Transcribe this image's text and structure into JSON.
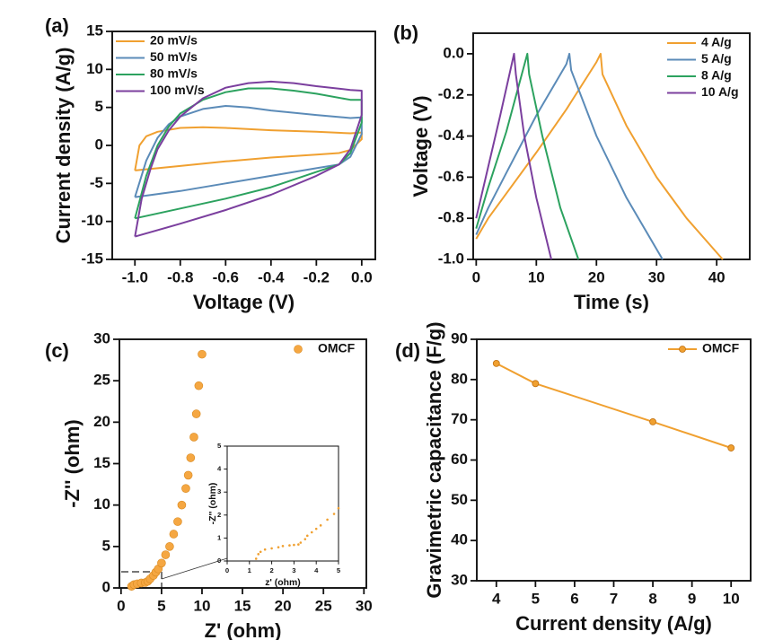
{
  "chart_data": [
    {
      "type": "line",
      "label": "(a)",
      "xlabel": "Voltage (V)",
      "ylabel": "Current density (A/g)",
      "xlim": [
        -1.1,
        0.06
      ],
      "ylim": [
        -15,
        15
      ],
      "xticks": [
        {
          "value": -1.0,
          "label": "-1.0"
        },
        -0.8,
        -0.6,
        -0.4,
        -0.2,
        {
          "value": 0,
          "label": "0.0"
        }
      ],
      "yticks": [
        -15,
        -10,
        -5,
        0,
        5,
        10,
        15
      ],
      "legend": "upper left",
      "series": [
        {
          "name": "20 mV/s",
          "color": "#f0a030",
          "x": [
            -1.0,
            -0.98,
            -0.95,
            -0.9,
            -0.8,
            -0.7,
            -0.6,
            -0.4,
            -0.2,
            -0.05,
            0,
            0,
            -0.05,
            -0.1,
            -0.2,
            -0.4,
            -0.6,
            -0.8,
            -1.0
          ],
          "values": [
            -3.3,
            0,
            1.2,
            1.8,
            2.3,
            2.4,
            2.3,
            2.0,
            1.8,
            1.6,
            1.7,
            0.8,
            -0.6,
            -1.0,
            -1.2,
            -1.6,
            -2.1,
            -2.7,
            -3.3
          ]
        },
        {
          "name": "50 mV/s",
          "color": "#5b8bb8",
          "x": [
            -1.0,
            -0.95,
            -0.9,
            -0.85,
            -0.8,
            -0.7,
            -0.6,
            -0.5,
            -0.4,
            -0.2,
            -0.05,
            0,
            0,
            -0.05,
            -0.1,
            -0.2,
            -0.4,
            -0.6,
            -0.8,
            -1.0
          ],
          "values": [
            -6.8,
            -2,
            1,
            2.8,
            3.8,
            4.8,
            5.2,
            5.0,
            4.6,
            4.0,
            3.6,
            3.7,
            1.5,
            -1.5,
            -2.5,
            -3.0,
            -4.0,
            -5.0,
            -6.0,
            -6.8
          ]
        },
        {
          "name": "80 mV/s",
          "color": "#2ca25f",
          "x": [
            -1.0,
            -0.95,
            -0.9,
            -0.85,
            -0.8,
            -0.7,
            -0.6,
            -0.5,
            -0.4,
            -0.3,
            -0.2,
            -0.05,
            0,
            0,
            -0.05,
            -0.1,
            -0.2,
            -0.4,
            -0.6,
            -0.8,
            -1.0
          ],
          "values": [
            -9.6,
            -4,
            0,
            2.5,
            4.2,
            6.0,
            7.0,
            7.5,
            7.5,
            7.2,
            6.8,
            6.0,
            6.0,
            3,
            -1,
            -2.5,
            -3.5,
            -5.5,
            -7.0,
            -8.3,
            -9.6
          ]
        },
        {
          "name": "100 mV/s",
          "color": "#7b3f9e",
          "x": [
            -1.0,
            -0.97,
            -0.93,
            -0.9,
            -0.85,
            -0.8,
            -0.7,
            -0.6,
            -0.5,
            -0.4,
            -0.3,
            -0.2,
            -0.05,
            0,
            0,
            -0.05,
            -0.1,
            -0.2,
            -0.4,
            -0.6,
            -0.8,
            -1.0
          ],
          "values": [
            -12,
            -7,
            -3,
            -0.5,
            2,
            3.8,
            6.2,
            7.6,
            8.2,
            8.4,
            8.2,
            7.8,
            7.3,
            7.2,
            4,
            -0.5,
            -2.5,
            -4,
            -6.5,
            -8.5,
            -10.3,
            -12
          ]
        }
      ]
    },
    {
      "type": "line",
      "label": "(b)",
      "xlabel": "Time (s)",
      "ylabel": "Voltage (V)",
      "xlim": [
        -0.5,
        45.5
      ],
      "ylim": [
        -1.0,
        0.1
      ],
      "xticks": [
        0,
        10,
        20,
        30,
        40
      ],
      "yticks": [
        {
          "value": 0,
          "label": "0.0"
        },
        -0.2,
        -0.4,
        -0.6,
        -0.8,
        {
          "value": -1.0,
          "label": "-1.0"
        }
      ],
      "legend": "upper right",
      "series": [
        {
          "name": "4 A/g",
          "color": "#f0a030",
          "x": [
            0,
            2,
            5,
            10,
            15,
            20,
            20.7,
            21,
            25,
            30,
            35,
            41
          ],
          "values": [
            -0.9,
            -0.8,
            -0.68,
            -0.48,
            -0.27,
            -0.04,
            0,
            -0.1,
            -0.35,
            -0.6,
            -0.8,
            -1.0
          ]
        },
        {
          "name": "5 A/g",
          "color": "#5b8bb8",
          "x": [
            0,
            2,
            5,
            10,
            15,
            15.5,
            15.8,
            20,
            25,
            31
          ],
          "values": [
            -0.88,
            -0.75,
            -0.58,
            -0.3,
            -0.05,
            0,
            -0.08,
            -0.4,
            -0.7,
            -1.0
          ]
        },
        {
          "name": "8 A/g",
          "color": "#2ca25f",
          "x": [
            0,
            2,
            5,
            8.5,
            8.8,
            11,
            14,
            17
          ],
          "values": [
            -0.85,
            -0.65,
            -0.38,
            0,
            -0.1,
            -0.4,
            -0.75,
            -1.0
          ]
        },
        {
          "name": "10 A/g",
          "color": "#7b3f9e",
          "x": [
            0,
            2,
            4,
            6.3,
            6.6,
            8,
            10,
            12.5
          ],
          "values": [
            -0.8,
            -0.55,
            -0.3,
            0,
            -0.1,
            -0.4,
            -0.7,
            -1.0
          ]
        }
      ]
    },
    {
      "type": "scatter",
      "label": "(c)",
      "xlabel": "Z' (ohm)",
      "ylabel": "-Z'' (ohm)",
      "xlim": [
        -0.2,
        30.3
      ],
      "ylim": [
        0,
        30
      ],
      "xticks": [
        0,
        5,
        10,
        15,
        20,
        25,
        30
      ],
      "yticks": [
        0,
        5,
        10,
        15,
        20,
        25,
        30
      ],
      "legend": "upper right",
      "series": [
        {
          "name": "OMCF",
          "color": "#f5a742",
          "x": [
            1.3,
            1.6,
            2,
            2.5,
            3,
            3.3,
            3.6,
            4,
            4.3,
            4.6,
            5,
            5.5,
            6,
            6.5,
            7,
            7.5,
            8,
            8.3,
            8.6,
            9,
            9.3,
            9.6,
            10
          ],
          "values": [
            0.2,
            0.4,
            0.5,
            0.6,
            0.65,
            0.8,
            1.1,
            1.5,
            1.9,
            2.3,
            3,
            4,
            5,
            6.5,
            8,
            10,
            12,
            13.6,
            15.7,
            18.2,
            21,
            24.4,
            28.2
          ]
        }
      ]
    },
    {
      "type": "line",
      "label": "(d)",
      "xlabel": "Current density (A/g)",
      "ylabel": "Gravimetric capacitance (F/g)",
      "xlim": [
        3.5,
        10.5
      ],
      "ylim": [
        30,
        90
      ],
      "markers": true,
      "xticks": [
        4,
        5,
        6,
        7,
        8,
        9,
        10
      ],
      "yticks": [
        30,
        40,
        50,
        60,
        70,
        80,
        90
      ],
      "legend": "upper right",
      "x": [
        4,
        5,
        8,
        10
      ],
      "series": [
        {
          "name": "OMCF",
          "color": "#f0a030",
          "values": [
            84,
            79,
            69.5,
            63
          ]
        }
      ]
    },
    {
      "type": "scatter",
      "xlabel": "z' (ohm)",
      "ylabel": "-Z'' (ohm)",
      "xlim": [
        0,
        5
      ],
      "ylim": [
        0,
        5
      ],
      "xticks": [
        0,
        1,
        2,
        3,
        4,
        5
      ],
      "yticks": [
        0,
        1,
        2,
        3,
        4,
        5
      ],
      "series": [
        {
          "color": "#f0a030",
          "x": [
            1.3,
            1.4,
            1.5,
            1.7,
            2,
            2.3,
            2.5,
            2.8,
            3,
            3.2,
            3.3,
            3.5,
            3.6,
            3.8,
            4,
            4.2,
            4.5,
            4.8,
            5
          ],
          "values": [
            0.1,
            0.3,
            0.4,
            0.5,
            0.55,
            0.6,
            0.65,
            0.68,
            0.7,
            0.72,
            0.8,
            0.95,
            1.1,
            1.25,
            1.4,
            1.55,
            1.8,
            2.05,
            2.3
          ]
        }
      ]
    }
  ]
}
